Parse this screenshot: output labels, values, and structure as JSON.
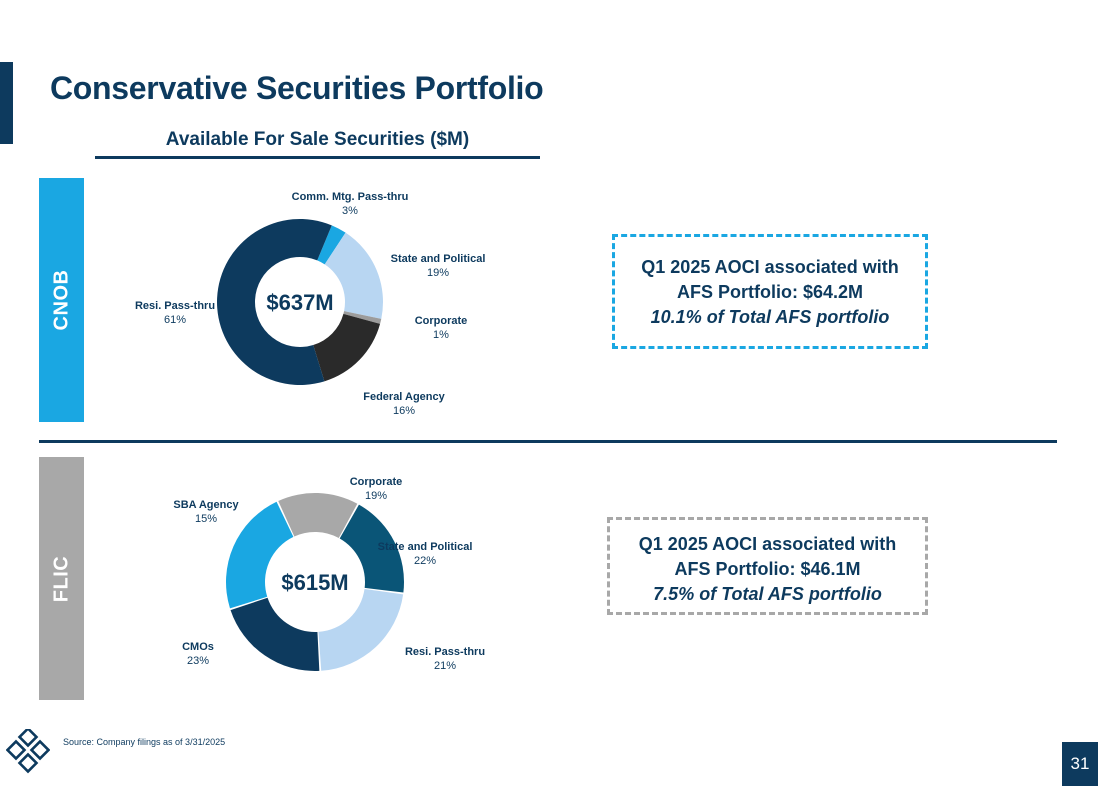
{
  "page": {
    "title": "Conservative Securities Portfolio",
    "subtitle": "Available For Sale Securities ($M)",
    "source": "Source: Company filings as of 3/31/2025",
    "page_number": "31"
  },
  "colors": {
    "navy": "#0d3a5e",
    "blue": "#1aa7e2",
    "light_blue": "#b8d6f2",
    "gray": "#a8a8a8",
    "teal": "#0a5577",
    "light_gray": "#9c9c9c"
  },
  "sections": {
    "cnob": {
      "label": "CNOB",
      "callout": {
        "line1": "Q1 2025 AOCI associated with",
        "line2": "AFS Portfolio: $64.2M",
        "line3": "10.1% of Total AFS portfolio"
      }
    },
    "flic": {
      "label": "FLIC",
      "callout": {
        "line1": "Q1 2025 AOCI associated with",
        "line2": "AFS Portfolio: $46.1M",
        "line3": "7.5% of Total AFS portfolio"
      }
    }
  },
  "chart_data": [
    {
      "type": "pie",
      "variant": "donut",
      "id": "cnob",
      "title": "Available For Sale Securities ($M)",
      "center_label": "$637M",
      "slices": [
        {
          "label": "Comm. Mtg. Pass-thru",
          "pct_label": "3%",
          "value": 3,
          "color": "#1aa7e2"
        },
        {
          "label": "State and Political",
          "pct_label": "19%",
          "value": 19,
          "color": "#b8d6f2"
        },
        {
          "label": "Corporate",
          "pct_label": "1%",
          "value": 1,
          "color": "#9c9c9c"
        },
        {
          "label": "Federal Agency",
          "pct_label": "16%",
          "value": 16,
          "color": "#2a2a2a"
        },
        {
          "label": "Resi. Pass-thru",
          "pct_label": "61%",
          "value": 61,
          "color": "#0d3a5e"
        }
      ]
    },
    {
      "type": "pie",
      "variant": "donut",
      "id": "flic",
      "title": "Available For Sale Securities ($M)",
      "center_label": "$615M",
      "slices": [
        {
          "label": "Corporate",
          "pct_label": "19%",
          "value": 19,
          "color": "#0a5577"
        },
        {
          "label": "State and Political",
          "pct_label": "22%",
          "value": 22,
          "color": "#b8d6f2"
        },
        {
          "label": "Resi. Pass-thru",
          "pct_label": "21%",
          "value": 21,
          "color": "#0d3a5e"
        },
        {
          "label": "CMOs",
          "pct_label": "23%",
          "value": 23,
          "color": "#1aa7e2"
        },
        {
          "label": "SBA Agency",
          "pct_label": "15%",
          "value": 15,
          "color": "#a8a8a8"
        }
      ]
    }
  ]
}
